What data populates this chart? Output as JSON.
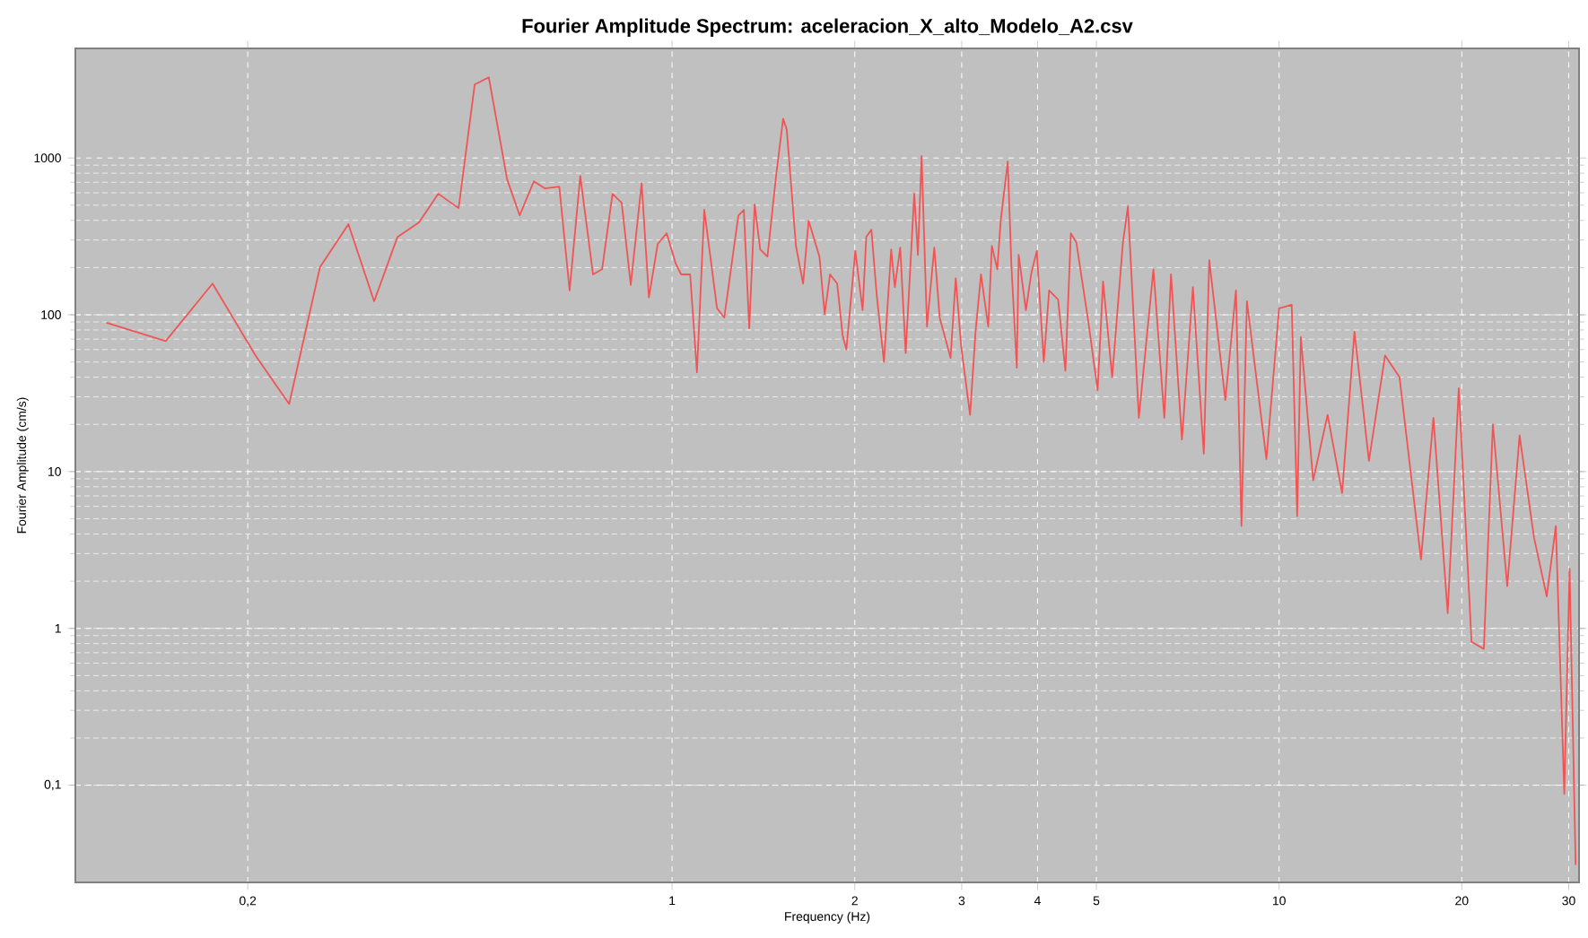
{
  "chart_data": {
    "type": "line",
    "title": "Fourier Amplitude Spectrum: aceleracion_X_alto_Modelo_A2.csv",
    "xlabel": "Frequency (Hz)",
    "ylabel": "Fourier Amplitude (cm/s)",
    "log": "xy",
    "grid": true,
    "xlim": [
      0.104,
      31.2
    ],
    "ylim": [
      0.024,
      5000
    ],
    "xticks": [
      {
        "value": 0.2,
        "label": "0,2"
      },
      1,
      2,
      3,
      4,
      5,
      10,
      20,
      30
    ],
    "yticks": [
      {
        "value": 0.1,
        "label": "0,1"
      },
      1,
      10,
      100,
      1000
    ],
    "x": [
      0.117,
      0.1465,
      0.175,
      0.206,
      0.234,
      0.263,
      0.293,
      0.323,
      0.353,
      0.383,
      0.412,
      0.445,
      0.473,
      0.499,
      0.535,
      0.561,
      0.592,
      0.617,
      0.652,
      0.678,
      0.706,
      0.741,
      0.767,
      0.798,
      0.826,
      0.855,
      0.891,
      0.916,
      0.947,
      0.98,
      1.014,
      1.035,
      1.071,
      1.099,
      1.13,
      1.186,
      1.219,
      1.286,
      1.313,
      1.34,
      1.368,
      1.397,
      1.436,
      1.485,
      1.524,
      1.545,
      1.6,
      1.644,
      1.679,
      1.749,
      1.784,
      1.821,
      1.871,
      1.91,
      1.937,
      2.004,
      2.06,
      2.089,
      2.13,
      2.174,
      2.234,
      2.296,
      2.328,
      2.376,
      2.426,
      2.506,
      2.541,
      2.577,
      2.63,
      2.704,
      2.76,
      2.876,
      2.933,
      2.994,
      3.097,
      3.162,
      3.228,
      3.318,
      3.364,
      3.434,
      3.479,
      3.573,
      3.623,
      3.698,
      3.724,
      3.828,
      3.909,
      3.99,
      4.096,
      4.18,
      4.325,
      4.446,
      4.539,
      4.634,
      4.853,
      5.024,
      5.129,
      5.309,
      5.531,
      5.636,
      5.875,
      6.209,
      6.471,
      6.637,
      6.918,
      7.211,
      7.516,
      7.674,
      8.155,
      8.492,
      8.67,
      8.851,
      9.53,
      10.0,
      10.49,
      10.71,
      10.86,
      11.38,
      12.02,
      12.7,
      13.31,
      14.06,
      14.95,
      15.79,
      17.13,
      17.96,
      18.96,
      19.77,
      20.75,
      21.74,
      22.5,
      23.76,
      24.9,
      26.3,
      27.6,
      28.57,
      29.5,
      30.1,
      30.8
    ],
    "series": [
      {
        "color": "#f05454",
        "values": [
          89,
          68,
          158,
          55,
          27,
          201,
          378,
          122,
          314,
          388,
          591,
          479,
          2940,
          3270,
          730,
          430,
          710,
          640,
          657,
          143,
          769,
          181,
          195,
          591,
          518,
          155,
          692,
          129,
          283,
          331,
          212,
          181,
          181,
          43,
          467,
          110,
          96,
          430,
          467,
          82,
          505,
          261,
          235,
          789,
          1780,
          1520,
          275,
          158,
          398,
          235,
          101,
          181,
          158,
          74,
          60,
          255,
          107,
          314,
          349,
          132,
          50,
          261,
          150,
          268,
          57,
          591,
          241,
          1030,
          84,
          268,
          96,
          53,
          171,
          63,
          23,
          78,
          181,
          84,
          275,
          195,
          398,
          949,
          206,
          46,
          241,
          107,
          186,
          255,
          50,
          143,
          125,
          44,
          331,
          290,
          89,
          33,
          163,
          40,
          290,
          491,
          22,
          195,
          22,
          181,
          16,
          150,
          13,
          223,
          28.6,
          143,
          4.5,
          122,
          12,
          110,
          116,
          5.2,
          72,
          8.8,
          23,
          7.3,
          78,
          11.7,
          55,
          40,
          2.75,
          22,
          1.25,
          34,
          0.82,
          0.74,
          20,
          1.86,
          17,
          3.8,
          1.6,
          4.5,
          0.088,
          2.4,
          0.031
        ]
      }
    ]
  }
}
